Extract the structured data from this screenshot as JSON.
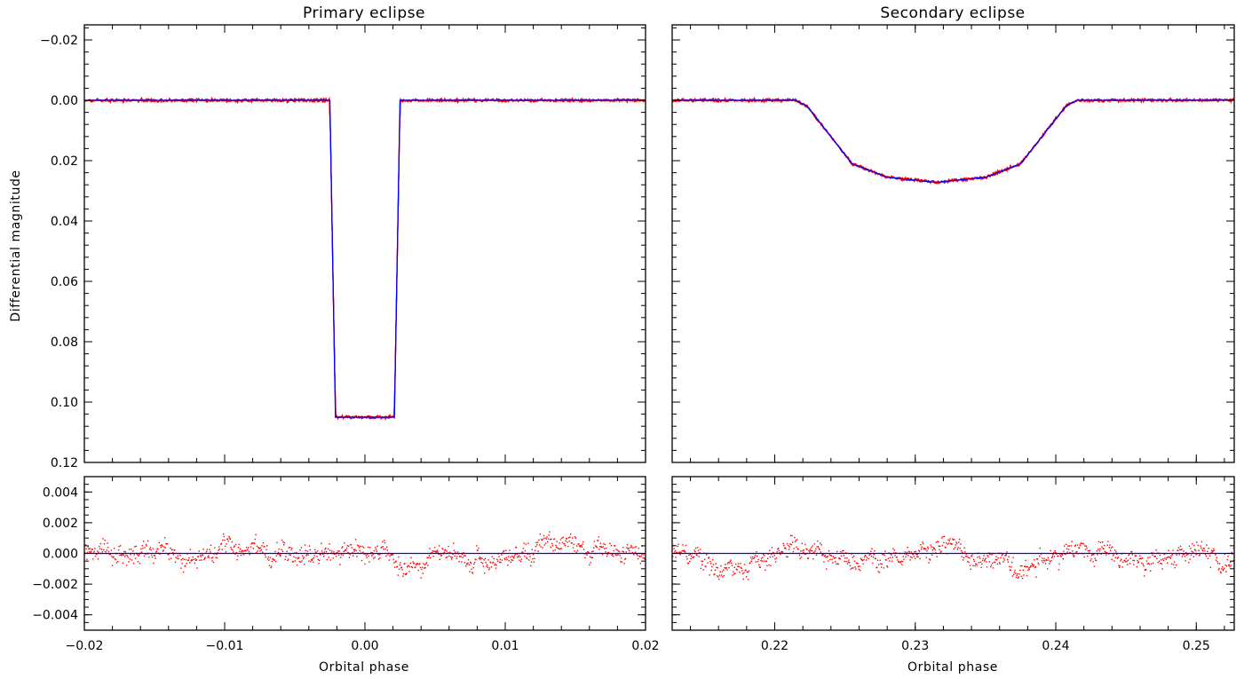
{
  "figure": {
    "ylabel": "Differential magnitude",
    "xlabel": "Orbital phase"
  },
  "chart_data": [
    {
      "type": "line",
      "panel": "primary-main",
      "title": "Primary eclipse",
      "xlim": [
        -0.02,
        0.02
      ],
      "ylim": [
        -0.025,
        0.12
      ],
      "y_inverted": true,
      "y_ticks": [
        -0.02,
        0.0,
        0.02,
        0.04,
        0.06,
        0.08,
        0.1,
        0.12
      ],
      "y_tick_labels": [
        "−0.02",
        "0.00",
        "0.02",
        "0.04",
        "0.06",
        "0.08",
        "0.10",
        "0.12"
      ],
      "series": [
        {
          "color": "#ff0000",
          "kind": "observed"
        },
        {
          "color": "#0000ff",
          "kind": "model",
          "x": [
            -0.02,
            -0.0025,
            -0.0021,
            0.0021,
            0.0025,
            0.02
          ],
          "y": [
            0.0,
            0.0,
            0.105,
            0.105,
            0.0,
            0.0
          ]
        }
      ]
    },
    {
      "type": "line",
      "panel": "secondary-main",
      "title": "Secondary eclipse",
      "xlim": [
        0.2127,
        0.2527
      ],
      "ylim": [
        -0.025,
        0.12
      ],
      "y_inverted": true,
      "series": [
        {
          "color": "#ff0000",
          "kind": "observed"
        },
        {
          "color": "#0000ff",
          "kind": "model",
          "x": [
            0.2127,
            0.2215,
            0.2223,
            0.2255,
            0.228,
            0.2315,
            0.235,
            0.2375,
            0.2407,
            0.2415,
            0.2527
          ],
          "y": [
            0.0,
            0.0,
            0.002,
            0.021,
            0.0255,
            0.0272,
            0.0255,
            0.021,
            0.002,
            0.0,
            0.0
          ]
        }
      ]
    },
    {
      "type": "scatter",
      "panel": "primary-residuals",
      "xlim": [
        -0.02,
        0.02
      ],
      "ylim": [
        -0.005,
        0.005
      ],
      "x_ticks": [
        -0.02,
        -0.01,
        0.0,
        0.01,
        0.02
      ],
      "x_tick_labels": [
        "−0.02",
        "−0.01",
        "0.00",
        "0.01",
        "0.02"
      ],
      "y_ticks": [
        -0.004,
        -0.002,
        0.0,
        0.002,
        0.004
      ],
      "y_tick_labels": [
        "−0.004",
        "−0.002",
        "0.000",
        "0.002",
        "0.004"
      ],
      "series": [
        {
          "color": "#ff0000",
          "kind": "residuals",
          "scatter_amplitude": 0.0005
        },
        {
          "color": "#0000ff",
          "kind": "zero-line",
          "y": 0.0
        }
      ]
    },
    {
      "type": "scatter",
      "panel": "secondary-residuals",
      "xlim": [
        0.2127,
        0.2527
      ],
      "ylim": [
        -0.005,
        0.005
      ],
      "x_ticks": [
        0.22,
        0.23,
        0.24,
        0.25
      ],
      "x_tick_labels": [
        "0.22",
        "0.23",
        "0.24",
        "0.25"
      ],
      "series": [
        {
          "color": "#ff0000",
          "kind": "residuals",
          "scatter_amplitude": 0.0005
        },
        {
          "color": "#0000ff",
          "kind": "zero-line",
          "y": 0.0
        }
      ]
    }
  ]
}
